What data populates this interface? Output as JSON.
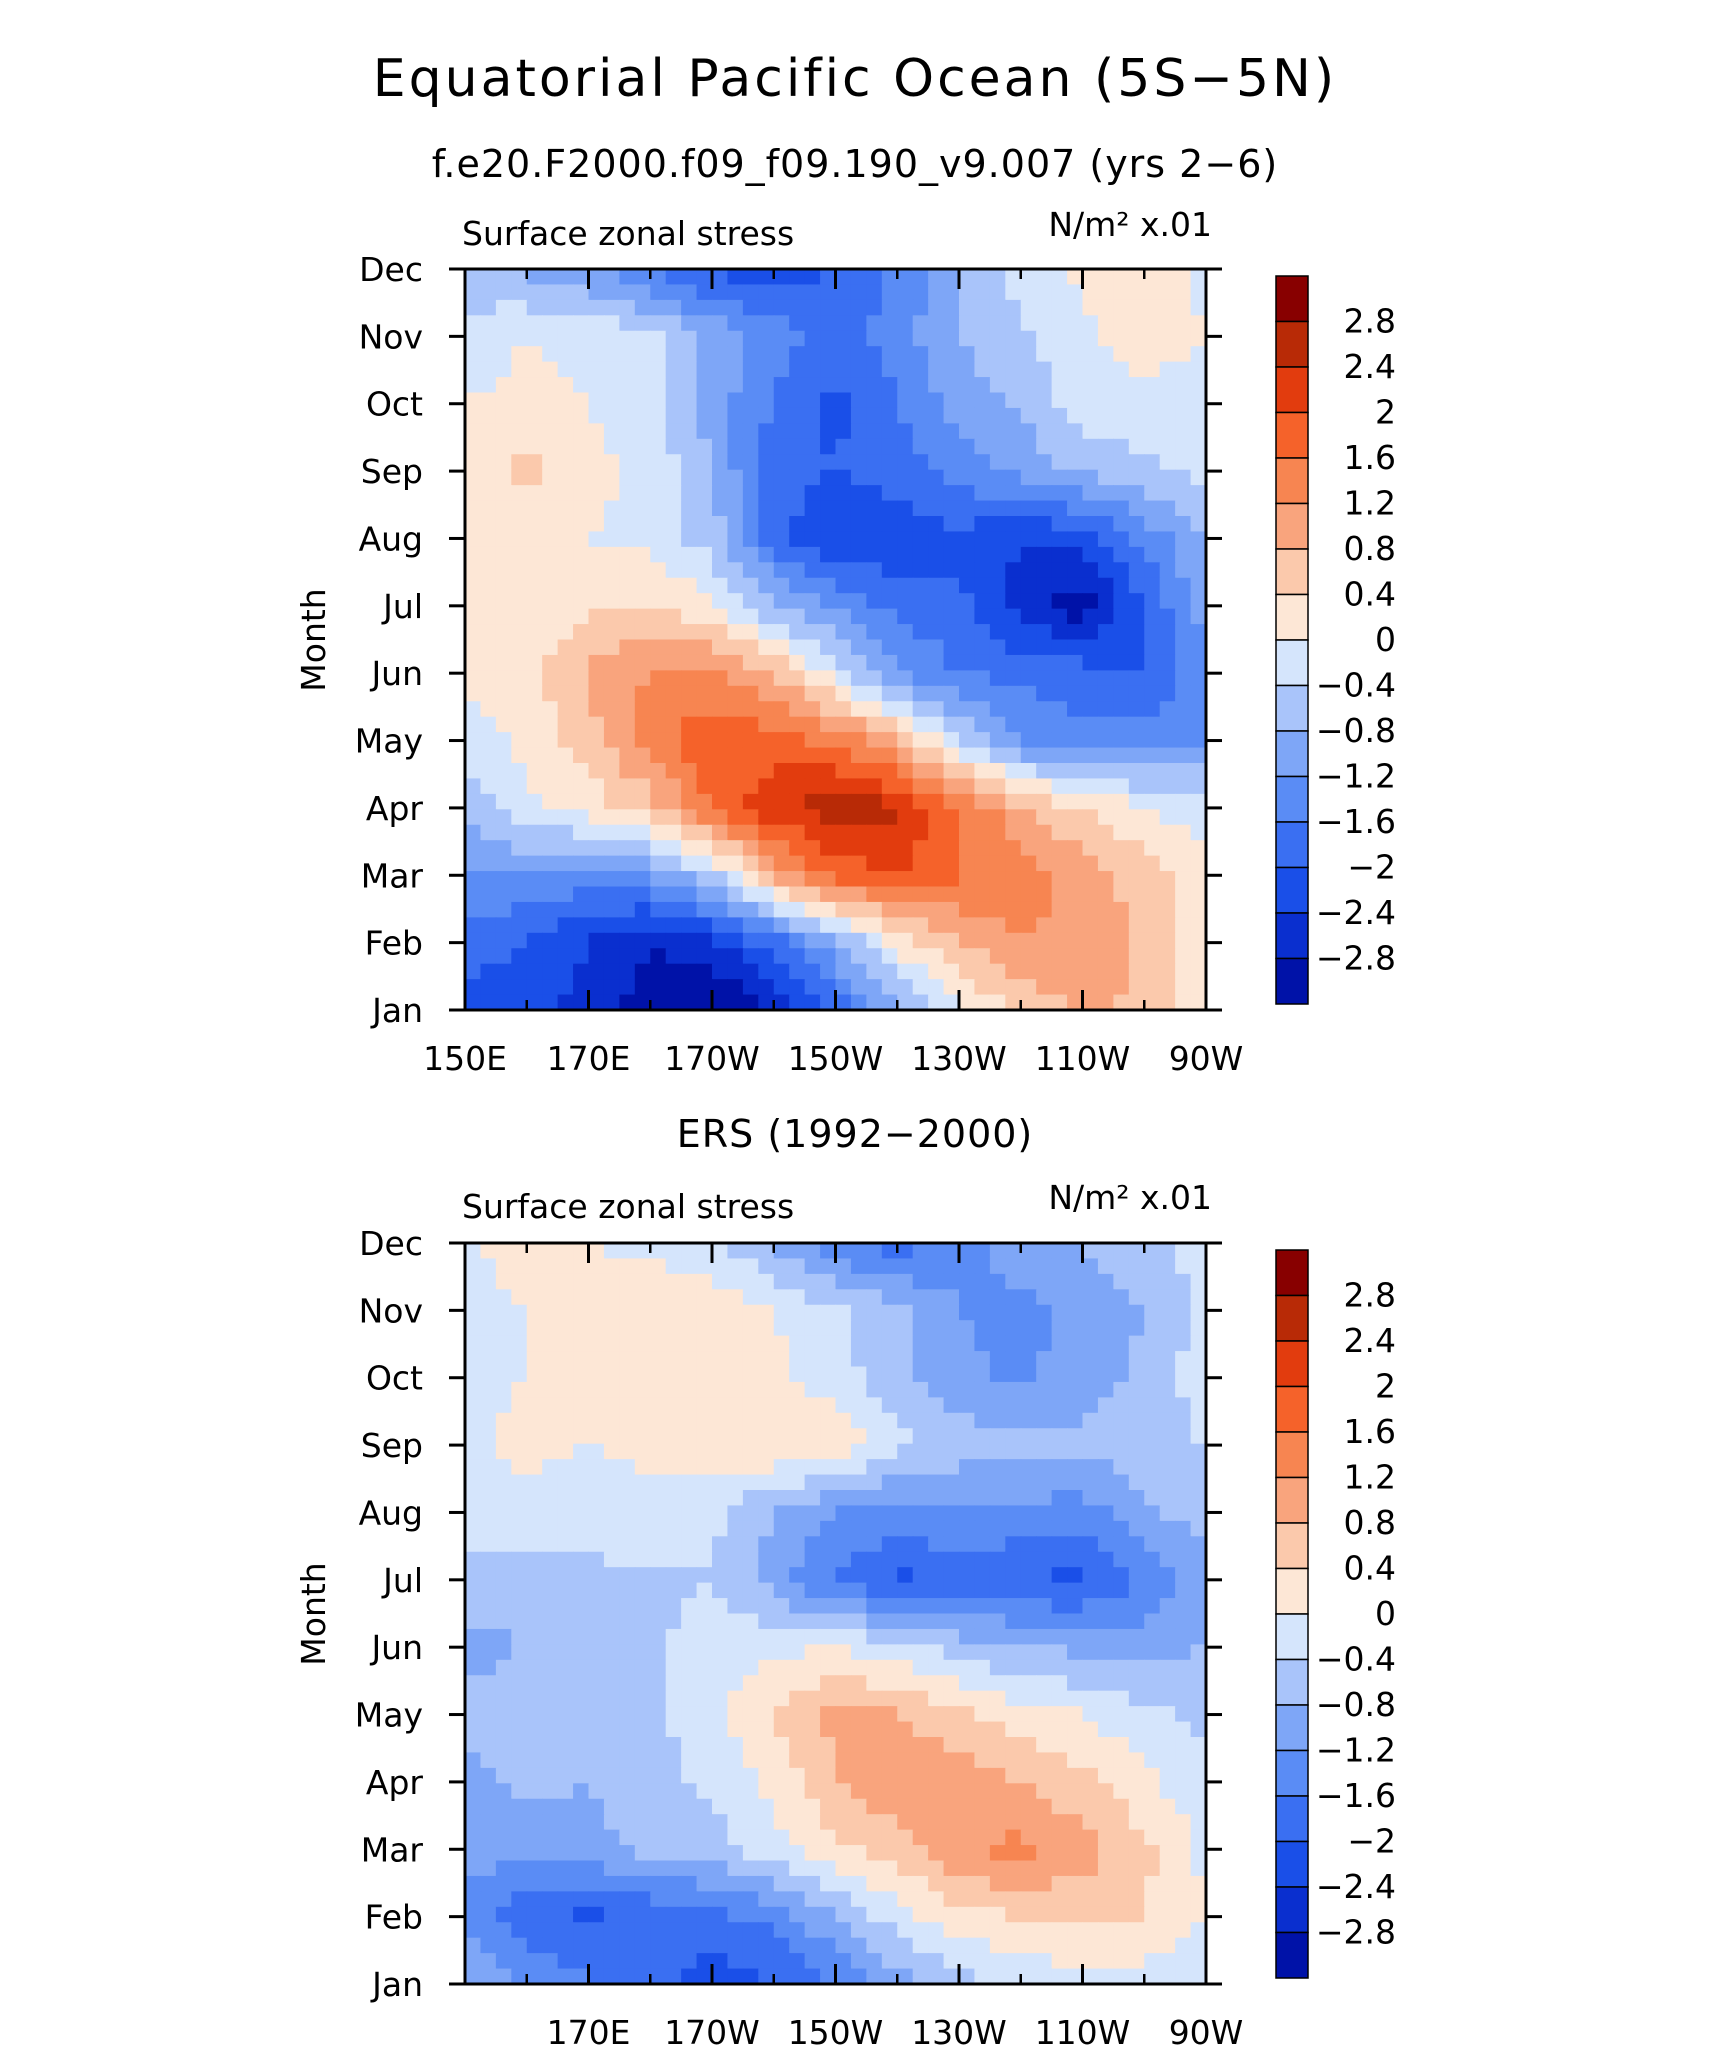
{
  "figure": {
    "title": "Equatorial Pacific Ocean (5S−5N)"
  },
  "colors": {
    "levels_palette": [
      "#00007f",
      "#0012a8",
      "#0a2fcf",
      "#1a4fe8",
      "#3a6ff2",
      "#5a8cf5",
      "#7ea6f7",
      "#a9c4fa",
      "#d5e5fc",
      "#fde7d6",
      "#fbc9ac",
      "#f9a47d",
      "#f78551",
      "#f5622a",
      "#e23c0e",
      "#b82a06",
      "#880000"
    ]
  },
  "chart_data": [
    {
      "type": "heatmap",
      "panel_title": "f.e20.F2000.f09_f09.190_v9.007 (yrs 2−6)",
      "left_label": "Surface zonal stress",
      "right_label": "N/m² x.01",
      "ylabel": "Month",
      "x_ticks": [
        {
          "lon": 150,
          "label": "150E"
        },
        {
          "lon": 170,
          "label": "170E"
        },
        {
          "lon": 190,
          "label": "170W"
        },
        {
          "lon": 210,
          "label": "150W"
        },
        {
          "lon": 230,
          "label": "130W"
        },
        {
          "lon": 250,
          "label": "110W"
        },
        {
          "lon": 270,
          "label": "90W"
        }
      ],
      "y_ticks": [
        "Jan",
        "Feb",
        "Mar",
        "Apr",
        "May",
        "Jun",
        "Jul",
        "Aug",
        "Sep",
        "Oct",
        "Nov",
        "Dec"
      ],
      "xlim": [
        150,
        270
      ],
      "ylim": [
        1,
        12
      ],
      "levels": [
        -2.8,
        -2.4,
        -2,
        -1.6,
        -1.2,
        -0.8,
        -0.4,
        0,
        0.4,
        0.8,
        1.2,
        1.6,
        2,
        2.4,
        2.8
      ],
      "colorbar_labels": [
        "2.8",
        "2.4",
        "2",
        "1.6",
        "1.2",
        "0.8",
        "0.4",
        "0",
        "−0.4",
        "−0.8",
        "−1.2",
        "−1.6",
        "−2",
        "−2.4",
        "−2.8"
      ],
      "lon": [
        150,
        160,
        170,
        180,
        190,
        200,
        210,
        220,
        230,
        240,
        250,
        260,
        270
      ],
      "months": [
        "Jan",
        "Feb",
        "Mar",
        "Apr",
        "May",
        "Jun",
        "Jul",
        "Aug",
        "Sep",
        "Oct",
        "Nov",
        "Dec"
      ],
      "values": [
        [
          -1.8,
          -1.8,
          -2.2,
          -2.6,
          -2.9,
          -2.4,
          -1.5,
          -0.4,
          0.3,
          0.9,
          1.3,
          1.1,
          0.6
        ],
        [
          -1.4,
          -1.6,
          -2.0,
          -2.4,
          -2.1,
          -1.4,
          -0.5,
          0.5,
          1.2,
          1.6,
          1.5,
          1.1,
          0.6
        ],
        [
          -0.9,
          -0.8,
          -1.0,
          -0.8,
          -0.1,
          1.3,
          2.1,
          2.4,
          2.0,
          1.8,
          1.4,
          1.0,
          0.5
        ],
        [
          -0.3,
          0.3,
          0.6,
          1.0,
          2.1,
          2.7,
          3.1,
          2.9,
          2.0,
          1.3,
          0.8,
          0.4,
          0.2
        ],
        [
          0.2,
          0.5,
          1.0,
          1.8,
          2.3,
          2.2,
          1.9,
          1.2,
          0.1,
          -0.9,
          -1.1,
          -1.0,
          -0.8
        ],
        [
          0.5,
          0.6,
          1.3,
          1.6,
          1.7,
          1.2,
          0.2,
          -0.8,
          -1.2,
          -1.3,
          -1.4,
          -1.6,
          -0.9
        ],
        [
          0.6,
          0.5,
          0.7,
          0.8,
          0.5,
          -0.4,
          -0.9,
          -1.3,
          -1.5,
          -2.2,
          -2.7,
          -1.6,
          -0.6
        ],
        [
          0.5,
          0.4,
          0.4,
          0.3,
          -0.2,
          -1.4,
          -2.0,
          -1.9,
          -1.7,
          -2.0,
          -1.8,
          -1.1,
          -0.3
        ],
        [
          0.6,
          0.9,
          0.5,
          0.3,
          -0.4,
          -1.5,
          -1.6,
          -1.4,
          -1.0,
          -0.7,
          -0.3,
          -0.1,
          0.1
        ],
        [
          0.4,
          0.5,
          0.4,
          0.2,
          -0.6,
          -1.2,
          -1.7,
          -1.2,
          -0.6,
          -0.3,
          0.2,
          0.3,
          0.2
        ],
        [
          0.2,
          0.4,
          0.3,
          0.1,
          -0.5,
          -1.0,
          -1.4,
          -1.0,
          -0.4,
          -0.1,
          0.3,
          0.6,
          0.4
        ],
        [
          -0.3,
          -0.5,
          -0.7,
          -1.2,
          -1.7,
          -1.8,
          -1.6,
          -1.1,
          -0.4,
          0.2,
          0.5,
          0.6,
          0.3
        ]
      ]
    },
    {
      "type": "heatmap",
      "panel_title": "ERS (1992−2000)",
      "left_label": "Surface zonal stress",
      "right_label": "N/m² x.01",
      "ylabel": "Month",
      "x_ticks": [
        {
          "lon": 170,
          "label": "170E"
        },
        {
          "lon": 190,
          "label": "170W"
        },
        {
          "lon": 210,
          "label": "150W"
        },
        {
          "lon": 230,
          "label": "130W"
        },
        {
          "lon": 250,
          "label": "110W"
        },
        {
          "lon": 270,
          "label": "90W"
        }
      ],
      "y_ticks": [
        "Jan",
        "Feb",
        "Mar",
        "Apr",
        "May",
        "Jun",
        "Jul",
        "Aug",
        "Sep",
        "Oct",
        "Nov",
        "Dec"
      ],
      "xlim": [
        150,
        270
      ],
      "ylim": [
        1,
        12
      ],
      "levels": [
        -2.8,
        -2.4,
        -2,
        -1.6,
        -1.2,
        -0.8,
        -0.4,
        0,
        0.4,
        0.8,
        1.2,
        1.6,
        2,
        2.4,
        2.8
      ],
      "colorbar_labels": [
        "2.8",
        "2.4",
        "2",
        "1.6",
        "1.2",
        "0.8",
        "0.4",
        "0",
        "−0.4",
        "−0.8",
        "−1.2",
        "−1.6",
        "−2",
        "−2.4",
        "−2.8"
      ],
      "lon": [
        150,
        160,
        170,
        180,
        190,
        200,
        210,
        220,
        230,
        240,
        250,
        260,
        270
      ],
      "months": [
        "Jan",
        "Feb",
        "Mar",
        "Apr",
        "May",
        "Jun",
        "Jul",
        "Aug",
        "Sep",
        "Oct",
        "Nov",
        "Dec"
      ],
      "values": [
        [
          -0.3,
          -0.9,
          -1.1,
          -1.5,
          -1.8,
          -1.6,
          -1.2,
          -0.6,
          -0.2,
          0.1,
          0.2,
          0.2,
          0.1
        ],
        [
          -1.0,
          -1.5,
          -1.7,
          -1.5,
          -1.3,
          -1.1,
          -0.4,
          0.2,
          0.7,
          0.8,
          0.9,
          0.8,
          0.4
        ],
        [
          -0.6,
          -0.6,
          -0.5,
          -0.3,
          -0.2,
          0.3,
          0.7,
          1.0,
          1.6,
          1.7,
          1.4,
          0.9,
          0.3
        ],
        [
          -0.5,
          -0.3,
          -0.4,
          -0.2,
          0.1,
          0.5,
          1.2,
          1.5,
          1.4,
          1.2,
          0.9,
          0.5,
          0.1
        ],
        [
          -0.3,
          -0.2,
          -0.3,
          -0.1,
          0.3,
          0.8,
          1.3,
          1.2,
          0.9,
          0.6,
          0.4,
          0.1,
          -0.1
        ],
        [
          -0.5,
          -0.4,
          -0.2,
          -0.1,
          0.2,
          0.3,
          0.4,
          0.2,
          -0.2,
          -0.4,
          -0.5,
          -0.6,
          -0.4
        ],
        [
          -0.2,
          -0.2,
          -0.1,
          -0.1,
          0.0,
          -0.6,
          -1.3,
          -1.7,
          -1.4,
          -1.6,
          -1.7,
          -1.1,
          -0.6
        ],
        [
          0.2,
          0.3,
          0.2,
          0.3,
          0.1,
          -0.4,
          -0.8,
          -0.9,
          -0.8,
          -0.9,
          -1.0,
          -0.5,
          -0.2
        ],
        [
          0.3,
          0.5,
          0.4,
          0.5,
          0.6,
          0.8,
          0.7,
          0.1,
          -0.2,
          -0.3,
          -0.3,
          -0.1,
          0.0
        ],
        [
          0.3,
          0.4,
          0.5,
          0.4,
          0.4,
          0.5,
          0.2,
          -0.3,
          -0.7,
          -0.9,
          -0.6,
          -0.3,
          0.2
        ],
        [
          0.3,
          0.4,
          0.5,
          0.7,
          0.6,
          0.4,
          0.1,
          -0.3,
          -0.8,
          -0.9,
          -0.7,
          -0.4,
          0.2
        ],
        [
          0.3,
          0.6,
          0.4,
          0.3,
          0.1,
          -0.4,
          -1.2,
          -1.4,
          -1.0,
          -0.6,
          -0.4,
          -0.1,
          0.1
        ]
      ]
    }
  ]
}
